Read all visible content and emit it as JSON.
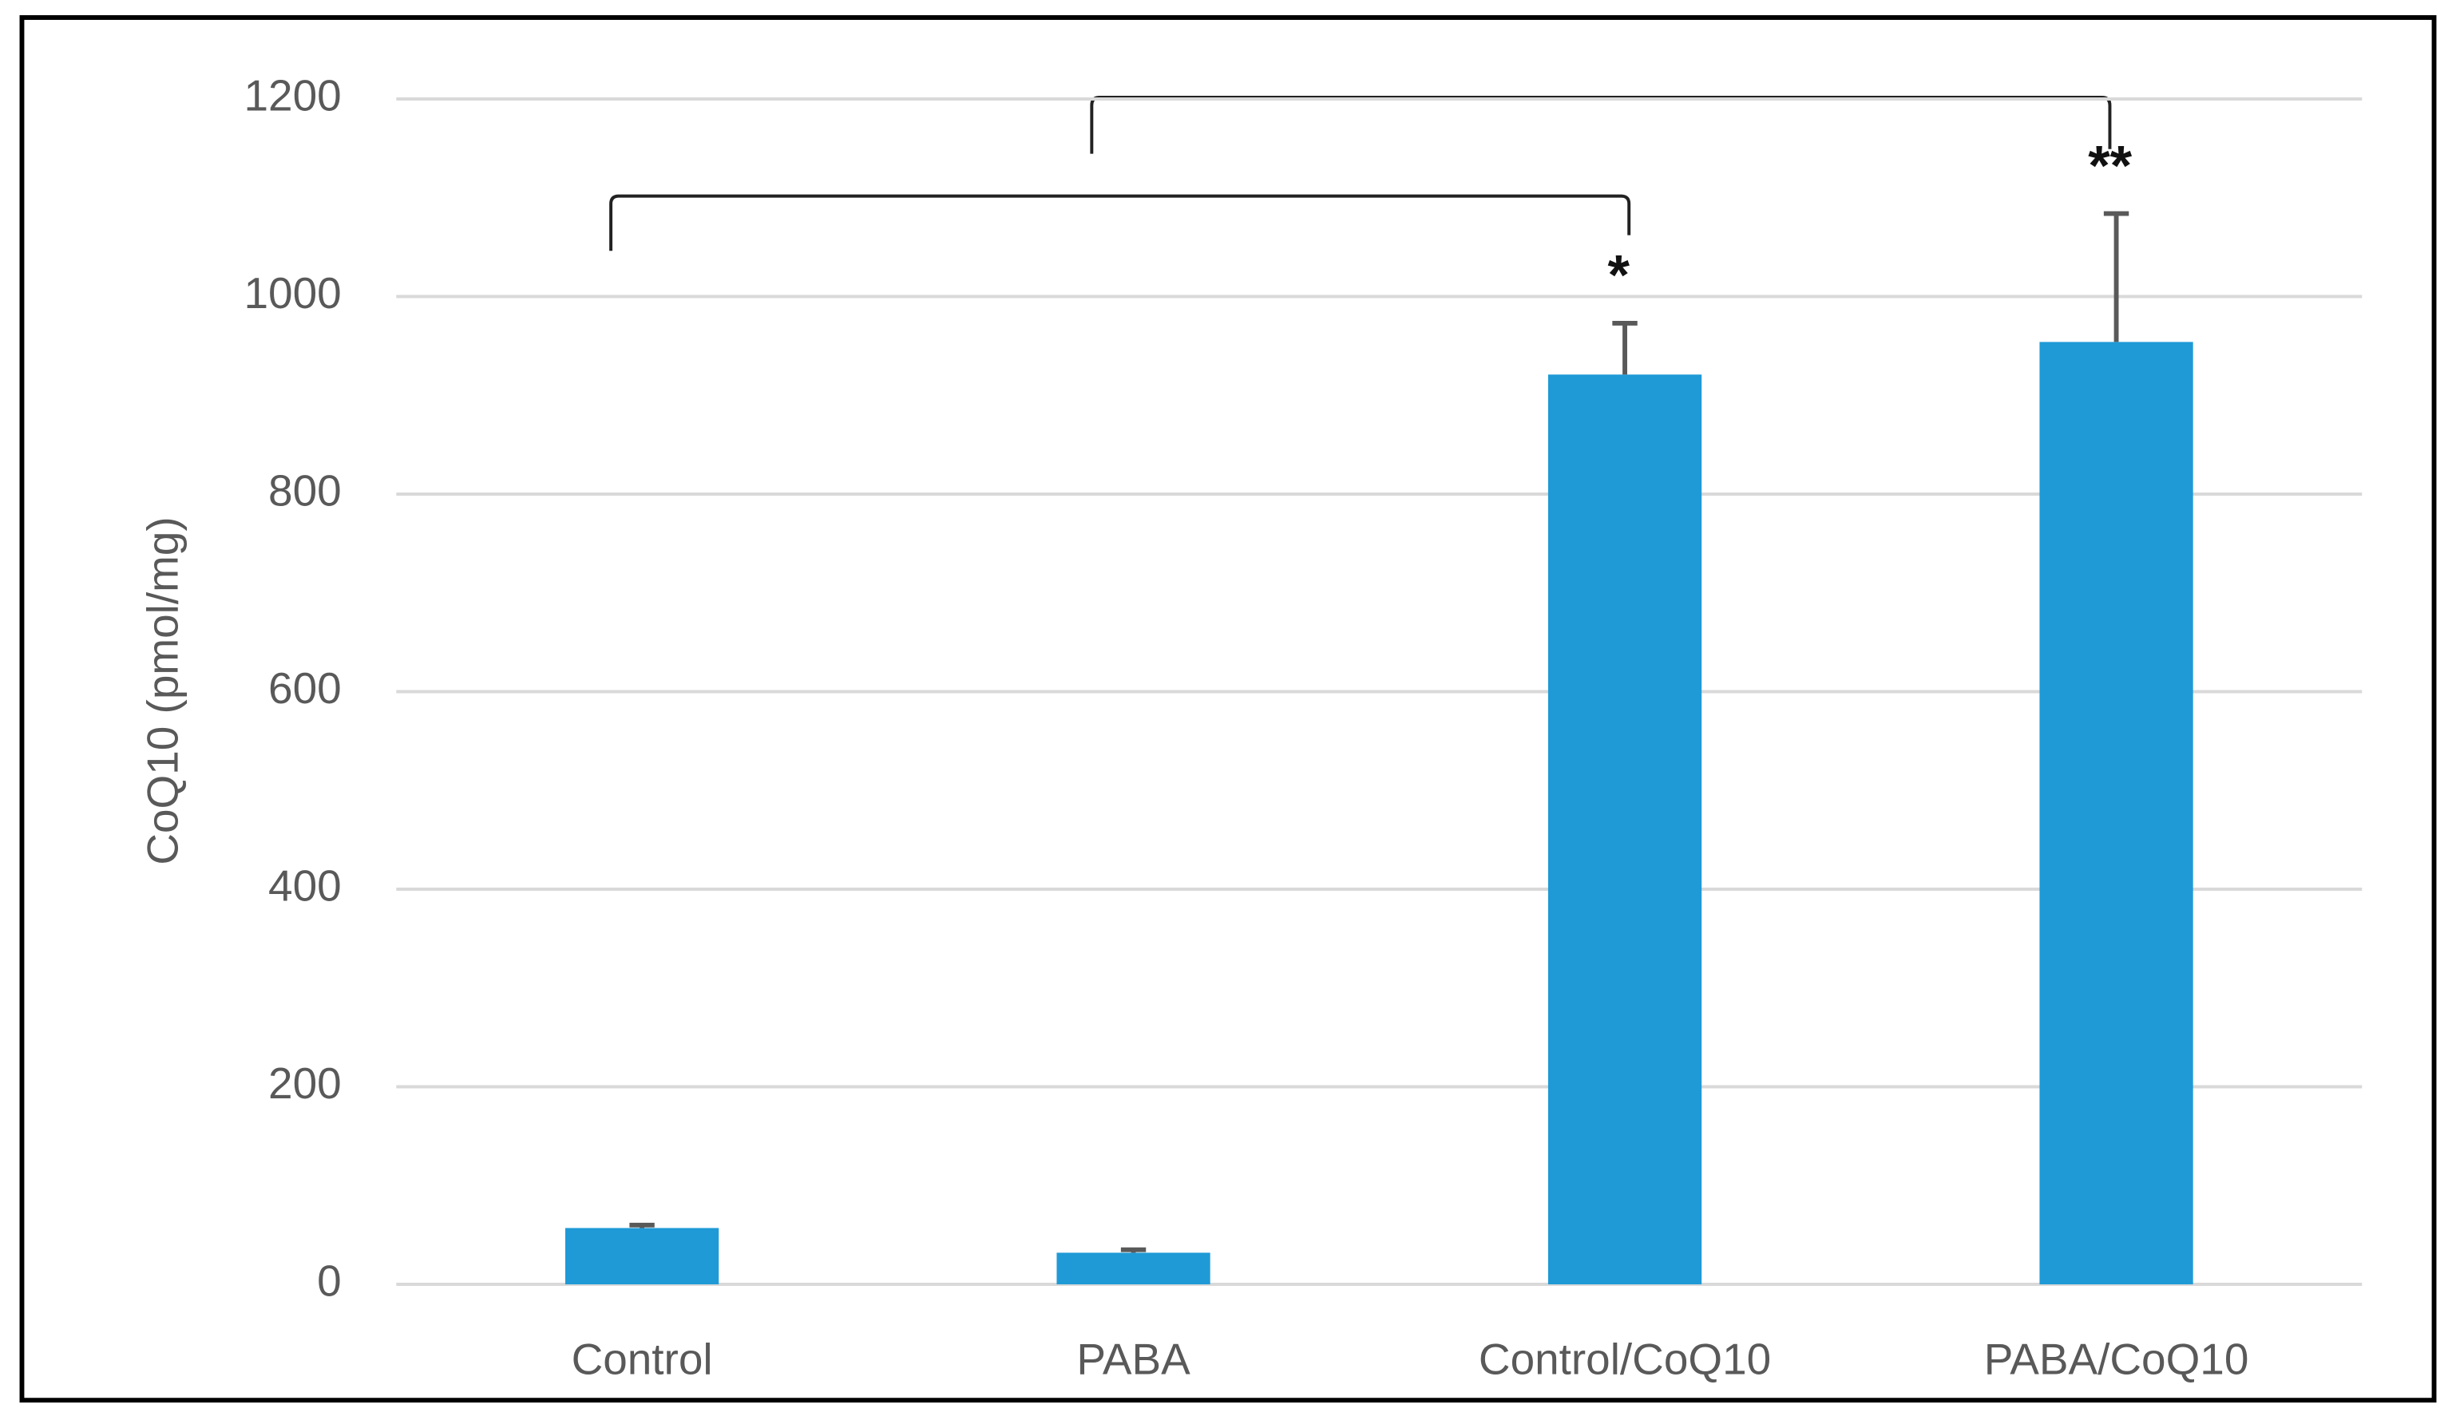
{
  "chart_data": {
    "type": "bar",
    "ylabel": "CoQ10 (pmol/mg)",
    "categories": [
      "Control",
      "PABA",
      "Control/CoQ10",
      "PABA/CoQ10"
    ],
    "values": [
      57,
      32,
      921,
      954
    ],
    "errors": [
      3,
      3,
      52,
      130
    ],
    "significance": [
      null,
      null,
      "*",
      "**"
    ],
    "color": "#1f9ad6",
    "error_color": "#595959",
    "ylim": [
      0,
      1200
    ],
    "yticks": [
      0,
      200,
      400,
      600,
      800,
      1000,
      1200
    ],
    "grid": true
  }
}
